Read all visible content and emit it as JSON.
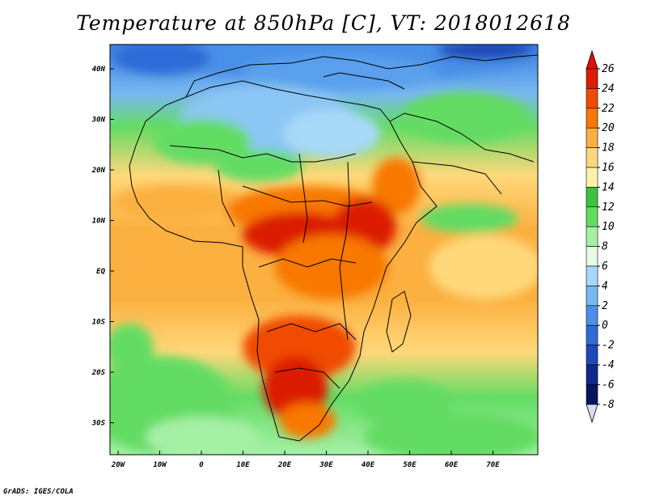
{
  "title": "Temperature at 850hPa [C], VT: 2018012618",
  "credit": "GrADS: IGES/COLA",
  "map": {
    "x_ticks": [
      "20W",
      "10W",
      "0",
      "10E",
      "20E",
      "30E",
      "40E",
      "50E",
      "60E",
      "70E"
    ],
    "y_ticks": [
      "40N",
      "30N",
      "20N",
      "10N",
      "EQ",
      "10S",
      "20S",
      "30S"
    ],
    "lon_range": [
      -22,
      80
    ],
    "lat_range": [
      -36,
      45
    ]
  },
  "colorbar": {
    "labels": [
      "26",
      "24",
      "22",
      "20",
      "18",
      "16",
      "14",
      "12",
      "10",
      "8",
      "6",
      "4",
      "2",
      "0",
      "-2",
      "-4",
      "-6",
      "-8"
    ],
    "colors": [
      "#a00000",
      "#dc1e00",
      "#f04b00",
      "#f87800",
      "#fbb040",
      "#ffd87a",
      "#fff2a8",
      "#3cc33c",
      "#64dc64",
      "#a6f0a6",
      "#e6fae6",
      "#a8d8f8",
      "#78b8f0",
      "#4a90e8",
      "#2e6ad8",
      "#1e4ab8",
      "#10288c",
      "#08145c"
    ],
    "over_color": "#e01000",
    "under_color": "#e0d8f8"
  },
  "colors": {
    "ocean_mid": "#ffd87a",
    "land_hot": "#f04b00",
    "med_sea": "#4a90e8"
  }
}
